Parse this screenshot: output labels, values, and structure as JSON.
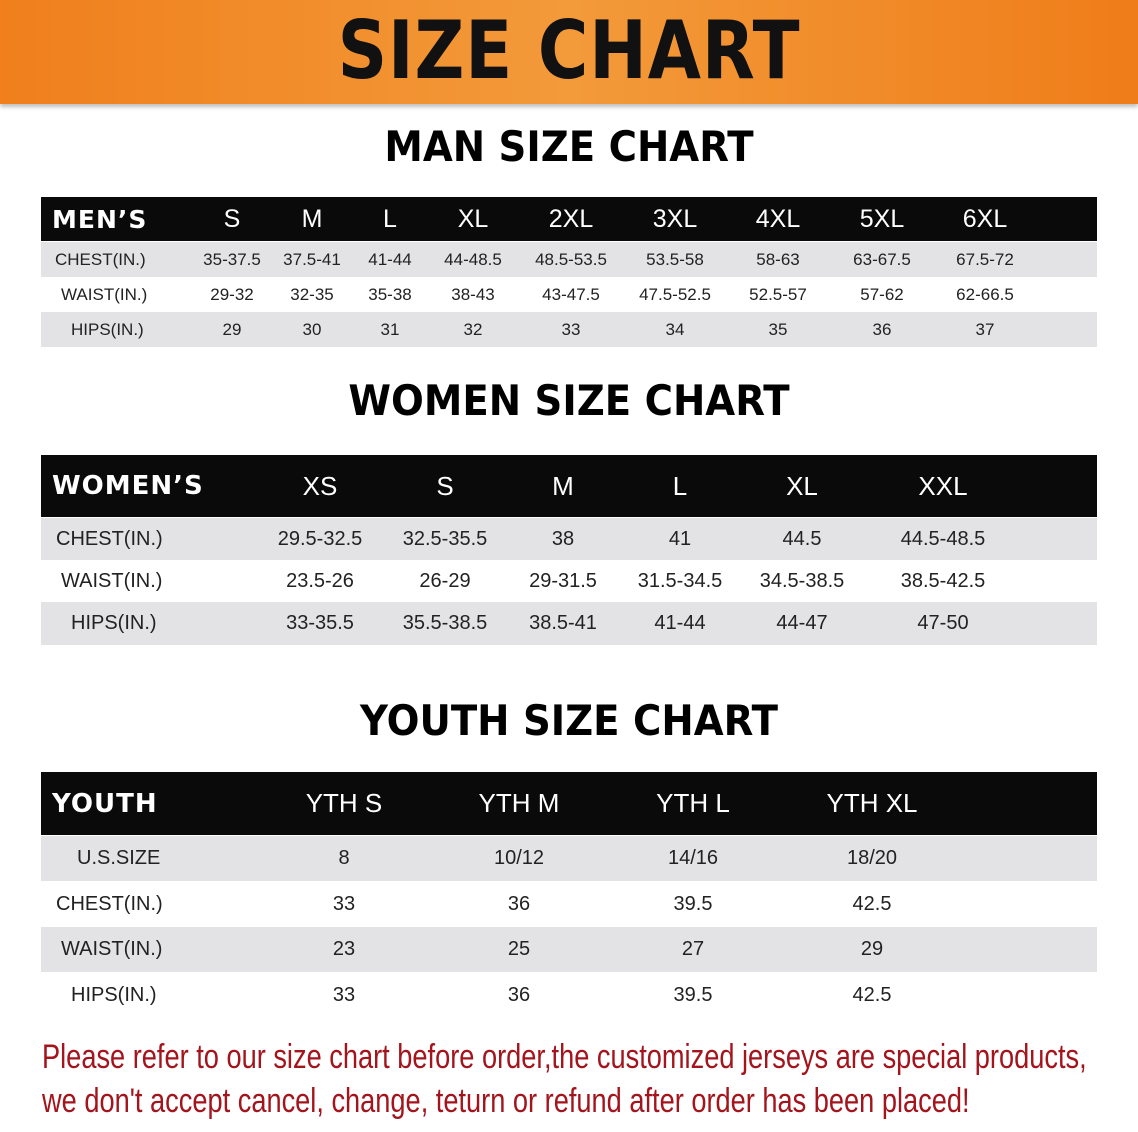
{
  "banner_title": "SIZE CHART",
  "men": {
    "title": "MAN SIZE CHART",
    "header": [
      "MEN’S",
      "S",
      "M",
      "L",
      "XL",
      "2XL",
      "3XL",
      "4XL",
      "5XL",
      "6XL"
    ],
    "rows": [
      [
        "CHEST(IN.)",
        "35-37.5",
        "37.5-41",
        "41-44",
        "44-48.5",
        "48.5-53.5",
        "53.5-58",
        "58-63",
        "63-67.5",
        "67.5-72"
      ],
      [
        "WAIST(IN.)",
        "29-32",
        "32-35",
        "35-38",
        "38-43",
        "43-47.5",
        "47.5-52.5",
        "52.5-57",
        "57-62",
        "62-66.5"
      ],
      [
        "HIPS(IN.)",
        "29",
        "30",
        "31",
        "32",
        "33",
        "34",
        "35",
        "36",
        "37"
      ]
    ]
  },
  "women": {
    "title": "WOMEN SIZE CHART",
    "header": [
      "WOMEN’S",
      "XS",
      "S",
      "M",
      "L",
      "XL",
      "XXL"
    ],
    "rows": [
      [
        "CHEST(IN.)",
        "29.5-32.5",
        "32.5-35.5",
        "38",
        "41",
        "44.5",
        "44.5-48.5"
      ],
      [
        "WAIST(IN.)",
        "23.5-26",
        "26-29",
        "29-31.5",
        "31.5-34.5",
        "34.5-38.5",
        "38.5-42.5"
      ],
      [
        "HIPS(IN.)",
        "33-35.5",
        "35.5-38.5",
        "38.5-41",
        "41-44",
        "44-47",
        "47-50"
      ]
    ]
  },
  "youth": {
    "title": "YOUTH SIZE CHART",
    "header": [
      "YOUTH",
      "YTH S",
      "YTH M",
      "YTH L",
      "YTH XL"
    ],
    "rows": [
      [
        "U.S.SIZE",
        "8",
        "10/12",
        "14/16",
        "18/20"
      ],
      [
        "CHEST(IN.)",
        "33",
        "36",
        "39.5",
        "42.5"
      ],
      [
        "WAIST(IN.)",
        "23",
        "25",
        "27",
        "29"
      ],
      [
        "HIPS(IN.)",
        "33",
        "36",
        "39.5",
        "42.5"
      ]
    ]
  },
  "notice": [
    "Please refer to our size chart before order,the customized jerseys are special products,",
    "we don't accept cancel, change, teturn or refund after order has been placed!"
  ],
  "colors": {
    "banner": "#f07f1c",
    "header_row": "#0a0a0a",
    "stripe": "#e3e3e6",
    "notice": "#a3141c"
  }
}
